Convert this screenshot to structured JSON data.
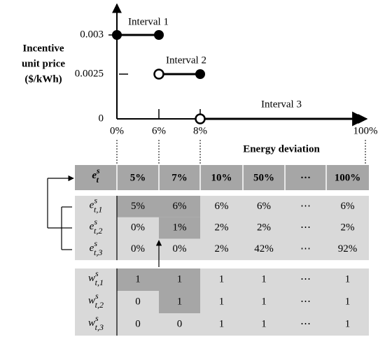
{
  "chart": {
    "y_label": [
      "Incentive",
      "unit price",
      "($/kWh)"
    ],
    "y_ticks": [
      "0.003",
      "0.0025",
      "0"
    ],
    "x_ticks": [
      "0%",
      "6%",
      "8%",
      "100%"
    ],
    "x_label": "Energy deviation",
    "intervals": [
      "Interval 1",
      "Interval 2",
      "Interval 3"
    ]
  },
  "header_row": {
    "label": {
      "base": "e",
      "sup": "s",
      "sub": "t"
    },
    "cells": [
      "5%",
      "7%",
      "10%",
      "50%",
      "···",
      "100%"
    ]
  },
  "e_table": {
    "labels": [
      {
        "base": "e",
        "sup": "s",
        "sub": "t,1"
      },
      {
        "base": "e",
        "sup": "s",
        "sub": "t,2"
      },
      {
        "base": "e",
        "sup": "s",
        "sub": "t,3"
      }
    ],
    "rows": [
      [
        "5%",
        "6%",
        "6%",
        "6%",
        "⋯",
        "6%"
      ],
      [
        "0%",
        "1%",
        "2%",
        "2%",
        "⋯",
        "2%"
      ],
      [
        "0%",
        "0%",
        "2%",
        "42%",
        "⋯",
        "92%"
      ]
    ]
  },
  "w_table": {
    "labels": [
      {
        "base": "w",
        "sup": "s",
        "sub": "t,1"
      },
      {
        "base": "w",
        "sup": "s",
        "sub": "t,2"
      },
      {
        "base": "w",
        "sup": "s",
        "sub": "t,3"
      }
    ],
    "rows": [
      [
        "1",
        "1",
        "1",
        "1",
        "⋯",
        "1"
      ],
      [
        "0",
        "1",
        "1",
        "1",
        "⋯",
        "1"
      ],
      [
        "0",
        "0",
        "1",
        "1",
        "⋯",
        "1"
      ]
    ]
  }
}
